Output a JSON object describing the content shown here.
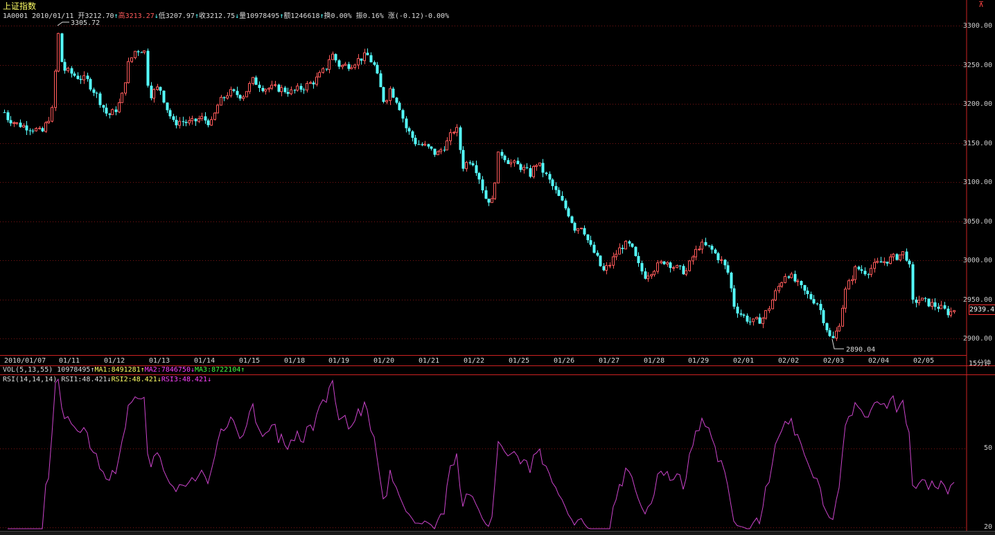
{
  "header": {
    "title": "上证指数",
    "code": "1A0001",
    "date": "2010/01/11",
    "open_label": "开",
    "open": "3212.70",
    "high_label": "高",
    "high": "3213.27",
    "low_label": "低",
    "low": "3207.97",
    "close_label": "收",
    "close": "3212.75",
    "volume_label": "量",
    "volume": "10978495",
    "amount_label": "额",
    "amount": "1246618",
    "turnover_label": "换",
    "turnover": "0.00%",
    "amplitude_label": "振",
    "amplitude": "0.16%",
    "change_label": "涨",
    "change": "(-0.12)-0.00%"
  },
  "price_axis": {
    "ticks": [
      "3300.00",
      "3250.00",
      "3200.00",
      "3150.00",
      "3100.00",
      "3050.00",
      "3000.00",
      "2950.00",
      "2900.00"
    ],
    "last_price": "2939.4"
  },
  "annotations": {
    "max_label": "3305.72",
    "min_label": "2890.04"
  },
  "time_axis": {
    "labels": [
      "2010/01/07",
      "01/11",
      "01/12",
      "01/13",
      "01/14",
      "01/15",
      "01/18",
      "01/19",
      "01/20",
      "01/21",
      "01/22",
      "01/25",
      "01/26",
      "01/27",
      "01/28",
      "01/29",
      "02/01",
      "02/02",
      "02/03",
      "02/04",
      "02/05"
    ],
    "interval": "15分钟"
  },
  "volume_indicator": {
    "name": "VOL(5,13,55)",
    "value": "10978495",
    "ma1": "MA1:8491281",
    "ma2": "MA2:7846750",
    "ma3": "MA3:8722104"
  },
  "rsi_indicator": {
    "name": "RSI(14,14,14)",
    "rsi1": "RSI1:48.421",
    "rsi2": "RSI2:48.421",
    "rsi3": "RSI3:48.421",
    "ticks": [
      "50",
      "20"
    ]
  },
  "colors": {
    "up": "#ff5a5a",
    "down": "#55ffff",
    "rsi": "#cc44cc",
    "grid": "#8b1a1a",
    "frame": "#cc2222"
  },
  "chart_data": {
    "type": "candlestick",
    "ylim": [
      2880,
      3320
    ],
    "anchors": [
      [
        0,
        3200
      ],
      [
        10,
        3182
      ],
      [
        25,
        3174
      ],
      [
        40,
        3170
      ],
      [
        50,
        3168
      ],
      [
        60,
        3162
      ],
      [
        72,
        3185
      ],
      [
        78,
        3198
      ],
      [
        82,
        3305
      ],
      [
        90,
        3245
      ],
      [
        110,
        3235
      ],
      [
        125,
        3230
      ],
      [
        140,
        3210
      ],
      [
        155,
        3185
      ],
      [
        165,
        3190
      ],
      [
        175,
        3205
      ],
      [
        185,
        3250
      ],
      [
        195,
        3268
      ],
      [
        208,
        3270
      ],
      [
        215,
        3210
      ],
      [
        230,
        3222
      ],
      [
        240,
        3195
      ],
      [
        250,
        3175
      ],
      [
        260,
        3178
      ],
      [
        275,
        3175
      ],
      [
        290,
        3182
      ],
      [
        305,
        3175
      ],
      [
        315,
        3200
      ],
      [
        330,
        3215
      ],
      [
        350,
        3210
      ],
      [
        365,
        3230
      ],
      [
        380,
        3220
      ],
      [
        400,
        3220
      ],
      [
        420,
        3215
      ],
      [
        440,
        3222
      ],
      [
        455,
        3230
      ],
      [
        470,
        3245
      ],
      [
        478,
        3265
      ],
      [
        490,
        3248
      ],
      [
        505,
        3250
      ],
      [
        520,
        3258
      ],
      [
        530,
        3262
      ],
      [
        540,
        3248
      ],
      [
        548,
        3222
      ],
      [
        555,
        3200
      ],
      [
        562,
        3220
      ],
      [
        575,
        3200
      ],
      [
        585,
        3170
      ],
      [
        600,
        3150
      ],
      [
        615,
        3145
      ],
      [
        630,
        3135
      ],
      [
        645,
        3150
      ],
      [
        658,
        3172
      ],
      [
        668,
        3120
      ],
      [
        680,
        3130
      ],
      [
        690,
        3110
      ],
      [
        700,
        3080
      ],
      [
        710,
        3075
      ],
      [
        720,
        3140
      ],
      [
        735,
        3125
      ],
      [
        750,
        3120
      ],
      [
        765,
        3110
      ],
      [
        775,
        3125
      ],
      [
        790,
        3105
      ],
      [
        800,
        3090
      ],
      [
        810,
        3075
      ],
      [
        820,
        3060
      ],
      [
        830,
        3040
      ],
      [
        840,
        3045
      ],
      [
        850,
        3020
      ],
      [
        860,
        3005
      ],
      [
        870,
        2985
      ],
      [
        880,
        2995
      ],
      [
        890,
        3010
      ],
      [
        900,
        3020
      ],
      [
        910,
        3018
      ],
      [
        920,
        2995
      ],
      [
        930,
        2980
      ],
      [
        945,
        2990
      ],
      [
        960,
        3000
      ],
      [
        975,
        2990
      ],
      [
        990,
        2985
      ],
      [
        1000,
        3005
      ],
      [
        1010,
        3020
      ],
      [
        1025,
        3015
      ],
      [
        1040,
        3000
      ],
      [
        1050,
        2985
      ],
      [
        1060,
        2940
      ],
      [
        1070,
        2930
      ],
      [
        1085,
        2920
      ],
      [
        1100,
        2925
      ],
      [
        1110,
        2940
      ],
      [
        1120,
        2960
      ],
      [
        1135,
        2985
      ],
      [
        1150,
        2970
      ],
      [
        1165,
        2955
      ],
      [
        1180,
        2945
      ],
      [
        1190,
        2920
      ],
      [
        1200,
        2895
      ],
      [
        1210,
        2915
      ],
      [
        1220,
        2960
      ],
      [
        1235,
        2990
      ],
      [
        1250,
        2985
      ],
      [
        1265,
        2995
      ],
      [
        1280,
        3000
      ],
      [
        1295,
        3005
      ],
      [
        1305,
        3010
      ],
      [
        1312,
        2995
      ],
      [
        1316,
        2945
      ],
      [
        1325,
        2950
      ],
      [
        1340,
        2945
      ],
      [
        1355,
        2940
      ],
      [
        1370,
        2932
      ],
      [
        1378,
        2938
      ]
    ]
  }
}
